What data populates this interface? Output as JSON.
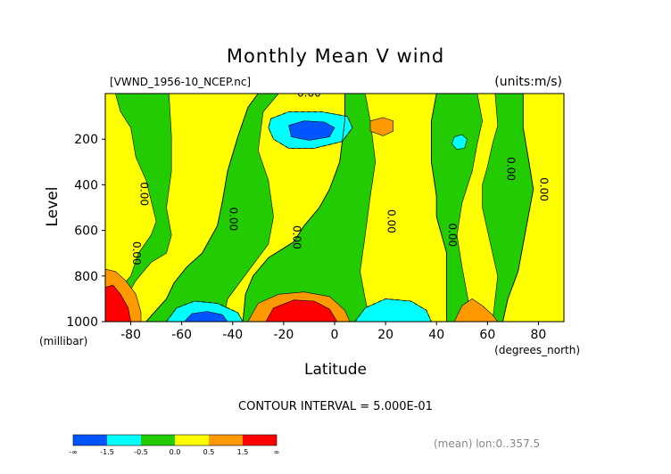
{
  "chart_data": {
    "type": "contour",
    "title": "Monthly Mean V wind",
    "file_label": "[VWND_1956-10_NCEP.nc]",
    "units_label": "(units:m/s)",
    "xlabel": "Latitude",
    "xunits": "(degrees_north)",
    "ylabel": "Level",
    "yunits": "(millibar)",
    "xlim": [
      -90,
      90
    ],
    "ylim": [
      1000,
      0
    ],
    "xticks": [
      -80,
      -60,
      -40,
      -20,
      0,
      20,
      40,
      60,
      80
    ],
    "xtick_labels": [
      "-80",
      "-60",
      "-40",
      "-20",
      "0",
      "20",
      "40",
      "60",
      "80"
    ],
    "yticks": [
      200,
      400,
      600,
      800,
      1000
    ],
    "ytick_labels": [
      "200",
      "400",
      "600",
      "800",
      "1000"
    ],
    "contour_interval_text": "CONTOUR INTERVAL = 5.000E-01",
    "contour_labels": [
      {
        "text": "0.00",
        "lat": -10,
        "lev": 0
      },
      {
        "text": "0.00",
        "lat": -75,
        "lev": 440
      },
      {
        "text": "0.00",
        "lat": -78,
        "lev": 700
      },
      {
        "text": "0.00",
        "lat": -40,
        "lev": 550
      },
      {
        "text": "0.00",
        "lat": -15,
        "lev": 630
      },
      {
        "text": "0.00",
        "lat": 22,
        "lev": 560
      },
      {
        "text": "0.00",
        "lat": 46,
        "lev": 620
      },
      {
        "text": "0.00",
        "lat": 69,
        "lev": 330
      },
      {
        "text": "0.00",
        "lat": 82,
        "lev": 420
      }
    ],
    "colorbar": {
      "colors": [
        "#0055ff",
        "#00ffff",
        "#22cc00",
        "#ffff00",
        "#ff9900",
        "#ff0000"
      ],
      "tick_labels": [
        "-∞",
        "-1.5",
        "-0.5",
        "0.0",
        "0.5",
        "1.5",
        "∞"
      ]
    },
    "footer_note": "(mean) lon:0..357.5",
    "regions": [
      {
        "level": "pos",
        "polygon": [
          [
            -90,
            0
          ],
          [
            -86,
            0
          ],
          [
            -84,
            80
          ],
          [
            -80,
            150
          ],
          [
            -78,
            280
          ],
          [
            -74,
            380
          ],
          [
            -72,
            470
          ],
          [
            -70,
            560
          ],
          [
            -72,
            620
          ],
          [
            -77,
            700
          ],
          [
            -80,
            800
          ],
          [
            -84,
            850
          ],
          [
            -90,
            840
          ]
        ]
      },
      {
        "level": "pos",
        "polygon": [
          [
            -65,
            0
          ],
          [
            -30,
            0
          ],
          [
            -34,
            60
          ],
          [
            -38,
            190
          ],
          [
            -42,
            340
          ],
          [
            -44,
            470
          ],
          [
            -46,
            580
          ],
          [
            -52,
            700
          ],
          [
            -58,
            760
          ],
          [
            -63,
            830
          ],
          [
            -66,
            900
          ],
          [
            -74,
            1000
          ],
          [
            -82,
            1000
          ],
          [
            -82,
            900
          ],
          [
            -78,
            820
          ],
          [
            -72,
            740
          ],
          [
            -66,
            700
          ],
          [
            -64,
            620
          ],
          [
            -66,
            500
          ],
          [
            -64,
            340
          ],
          [
            -64,
            190
          ]
        ]
      },
      {
        "level": "pos",
        "polygon": [
          [
            -22,
            0
          ],
          [
            4,
            0
          ],
          [
            4,
            120
          ],
          [
            2,
            300
          ],
          [
            -2,
            420
          ],
          [
            -6,
            500
          ],
          [
            -12,
            580
          ],
          [
            -16,
            650
          ],
          [
            -26,
            720
          ],
          [
            -32,
            800
          ],
          [
            -35,
            880
          ],
          [
            -36,
            1000
          ],
          [
            -44,
            1000
          ],
          [
            -42,
            900
          ],
          [
            -34,
            780
          ],
          [
            -26,
            660
          ],
          [
            -24,
            540
          ],
          [
            -26,
            380
          ],
          [
            -30,
            250
          ],
          [
            -28,
            80
          ]
        ]
      },
      {
        "level": "pos",
        "polygon": [
          [
            12,
            0
          ],
          [
            40,
            0
          ],
          [
            38,
            120
          ],
          [
            38,
            300
          ],
          [
            40,
            450
          ],
          [
            40,
            540
          ],
          [
            42,
            620
          ],
          [
            44,
            700
          ],
          [
            44,
            1000
          ],
          [
            14,
            1000
          ],
          [
            12,
            900
          ],
          [
            10,
            780
          ],
          [
            12,
            620
          ],
          [
            14,
            450
          ],
          [
            16,
            300
          ],
          [
            14,
            120
          ]
        ]
      },
      {
        "level": "pos",
        "polygon": [
          [
            56,
            0
          ],
          [
            63,
            0
          ],
          [
            64,
            140
          ],
          [
            62,
            220
          ],
          [
            60,
            320
          ],
          [
            58,
            400
          ],
          [
            58,
            500
          ],
          [
            60,
            600
          ],
          [
            62,
            700
          ],
          [
            64,
            800
          ],
          [
            63,
            900
          ],
          [
            62,
            1000
          ],
          [
            54,
            1000
          ],
          [
            52,
            880
          ],
          [
            50,
            760
          ],
          [
            48,
            620
          ],
          [
            50,
            480
          ],
          [
            54,
            340
          ],
          [
            56,
            220
          ],
          [
            58,
            120
          ]
        ]
      },
      {
        "level": "pos",
        "polygon": [
          [
            74,
            0
          ],
          [
            90,
            0
          ],
          [
            90,
            1000
          ],
          [
            66,
            1000
          ],
          [
            68,
            900
          ],
          [
            72,
            780
          ],
          [
            74,
            660
          ],
          [
            76,
            540
          ],
          [
            78,
            420
          ],
          [
            76,
            280
          ],
          [
            74,
            150
          ]
        ]
      },
      {
        "level": "pos2",
        "polygon": [
          [
            14,
            120
          ],
          [
            19,
            105
          ],
          [
            23,
            120
          ],
          [
            23,
            165
          ],
          [
            19,
            185
          ],
          [
            14,
            165
          ]
        ]
      },
      {
        "level": "pos2",
        "polygon": [
          [
            -90,
            770
          ],
          [
            -86,
            780
          ],
          [
            -82,
            820
          ],
          [
            -78,
            880
          ],
          [
            -76,
            960
          ],
          [
            -76,
            1000
          ],
          [
            -90,
            1000
          ]
        ]
      },
      {
        "level": "pos2",
        "polygon": [
          [
            -34,
            1000
          ],
          [
            -30,
            920
          ],
          [
            -22,
            880
          ],
          [
            -12,
            870
          ],
          [
            -2,
            890
          ],
          [
            4,
            950
          ],
          [
            6,
            1000
          ]
        ]
      },
      {
        "level": "pos2",
        "polygon": [
          [
            47,
            1000
          ],
          [
            50,
            930
          ],
          [
            54,
            900
          ],
          [
            58,
            930
          ],
          [
            62,
            970
          ],
          [
            64,
            1000
          ]
        ]
      },
      {
        "level": "pos3",
        "polygon": [
          [
            -90,
            850
          ],
          [
            -87,
            840
          ],
          [
            -84,
            880
          ],
          [
            -81,
            940
          ],
          [
            -80,
            1000
          ],
          [
            -90,
            1000
          ]
        ]
      },
      {
        "level": "pos3",
        "polygon": [
          [
            -27,
            1000
          ],
          [
            -24,
            940
          ],
          [
            -16,
            905
          ],
          [
            -8,
            910
          ],
          [
            -2,
            945
          ],
          [
            1,
            1000
          ]
        ]
      },
      {
        "level": "neg",
        "polygon": [
          [
            -25,
            110
          ],
          [
            -18,
            80
          ],
          [
            -5,
            80
          ],
          [
            5,
            100
          ],
          [
            7,
            150
          ],
          [
            3,
            210
          ],
          [
            -8,
            240
          ],
          [
            -18,
            240
          ],
          [
            -24,
            200
          ],
          [
            -26,
            150
          ]
        ]
      },
      {
        "level": "neg",
        "polygon": [
          [
            -66,
            1000
          ],
          [
            -62,
            940
          ],
          [
            -55,
            910
          ],
          [
            -46,
            920
          ],
          [
            -38,
            960
          ],
          [
            -36,
            1000
          ]
        ]
      },
      {
        "level": "neg",
        "polygon": [
          [
            8,
            1000
          ],
          [
            12,
            940
          ],
          [
            20,
            900
          ],
          [
            30,
            910
          ],
          [
            36,
            950
          ],
          [
            38,
            1000
          ]
        ]
      },
      {
        "level": "neg",
        "polygon": [
          [
            47,
            190
          ],
          [
            50,
            180
          ],
          [
            52,
            200
          ],
          [
            51,
            240
          ],
          [
            48,
            245
          ],
          [
            46,
            220
          ]
        ]
      },
      {
        "level": "neg2",
        "polygon": [
          [
            -18,
            140
          ],
          [
            -12,
            120
          ],
          [
            -4,
            125
          ],
          [
            0,
            150
          ],
          [
            -2,
            190
          ],
          [
            -10,
            205
          ],
          [
            -17,
            190
          ]
        ]
      },
      {
        "level": "neg2",
        "polygon": [
          [
            -59,
            1000
          ],
          [
            -56,
            965
          ],
          [
            -50,
            955
          ],
          [
            -44,
            970
          ],
          [
            -42,
            1000
          ]
        ]
      }
    ],
    "contour_lines": [
      {
        "style": "solid",
        "points": [
          [
            -30,
            0
          ],
          [
            -34,
            60
          ],
          [
            -38,
            190
          ],
          [
            -42,
            340
          ],
          [
            -44,
            470
          ],
          [
            -46,
            580
          ],
          [
            -52,
            700
          ],
          [
            -58,
            760
          ],
          [
            -63,
            830
          ],
          [
            -66,
            900
          ],
          [
            -74,
            1000
          ]
        ]
      },
      {
        "style": "solid",
        "points": [
          [
            4,
            0
          ],
          [
            4,
            120
          ],
          [
            2,
            300
          ],
          [
            -2,
            420
          ],
          [
            -6,
            500
          ],
          [
            -12,
            580
          ],
          [
            -16,
            650
          ],
          [
            -26,
            720
          ],
          [
            -32,
            800
          ],
          [
            -35,
            880
          ],
          [
            -36,
            1000
          ]
        ]
      },
      {
        "style": "solid",
        "points": [
          [
            40,
            0
          ],
          [
            38,
            120
          ],
          [
            38,
            300
          ],
          [
            40,
            450
          ],
          [
            40,
            540
          ],
          [
            42,
            620
          ],
          [
            44,
            700
          ],
          [
            44,
            1000
          ]
        ]
      },
      {
        "style": "solid",
        "points": [
          [
            74,
            0
          ],
          [
            74,
            150
          ],
          [
            76,
            280
          ],
          [
            78,
            420
          ],
          [
            76,
            540
          ],
          [
            74,
            660
          ],
          [
            72,
            780
          ],
          [
            68,
            900
          ],
          [
            66,
            1000
          ]
        ]
      },
      {
        "style": "dashed",
        "points": [
          [
            -25,
            110
          ],
          [
            -18,
            80
          ],
          [
            -5,
            80
          ],
          [
            5,
            100
          ],
          [
            7,
            150
          ],
          [
            3,
            210
          ],
          [
            -8,
            240
          ],
          [
            -18,
            240
          ],
          [
            -24,
            200
          ],
          [
            -26,
            150
          ],
          [
            -25,
            110
          ]
        ]
      },
      {
        "style": "dashed",
        "points": [
          [
            8,
            1000
          ],
          [
            12,
            940
          ],
          [
            20,
            900
          ],
          [
            30,
            910
          ],
          [
            36,
            950
          ],
          [
            38,
            1000
          ]
        ]
      },
      {
        "style": "dashed",
        "points": [
          [
            -66,
            1000
          ],
          [
            -62,
            940
          ],
          [
            -55,
            910
          ],
          [
            -46,
            920
          ],
          [
            -38,
            960
          ],
          [
            -36,
            1000
          ]
        ]
      }
    ]
  }
}
